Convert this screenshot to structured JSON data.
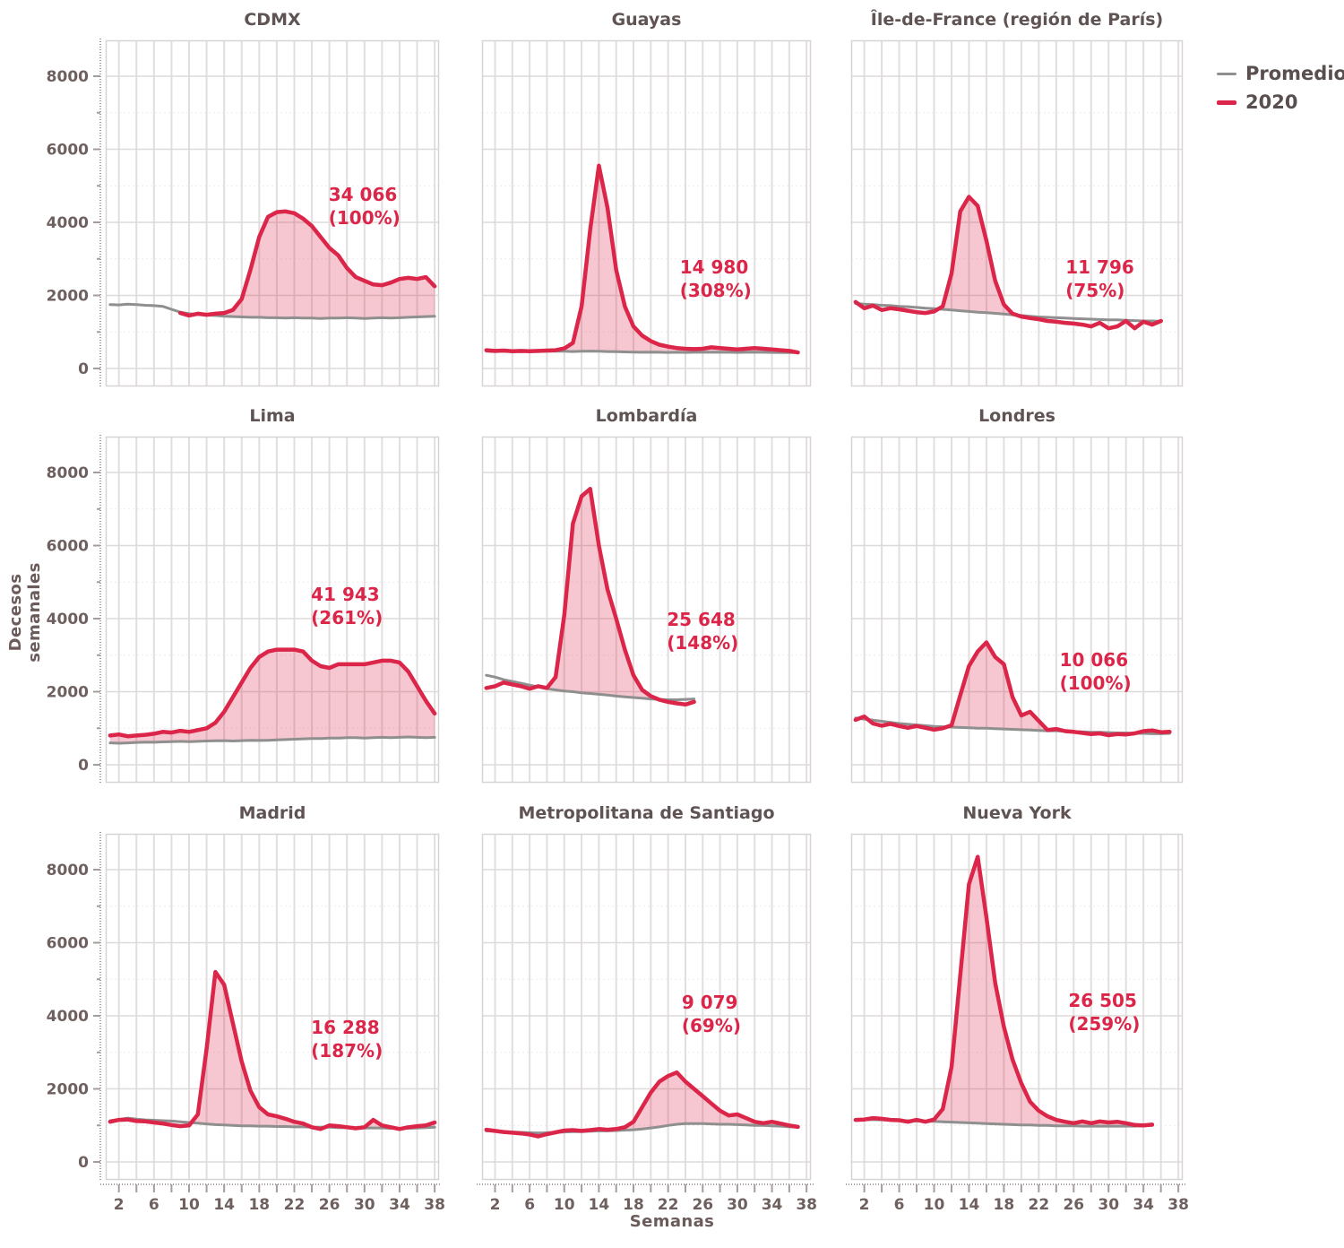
{
  "legend": {
    "items": [
      {
        "label": "Promedio",
        "color": "#8f8f8f"
      },
      {
        "label": "2020",
        "color": "#db2549"
      }
    ]
  },
  "labels": {
    "y_axis": "Decesos semanales",
    "x_axis": "Semanas"
  },
  "colors": {
    "line_2020": "#db2549",
    "line_promedio": "#8f8f8f",
    "fill_2020": "rgba(219,37,73,0.26)",
    "grid_major": "#dedada",
    "grid_minor": "#efeaea",
    "panel_border": "#d8d4d4",
    "axis": "#a59d9d",
    "tick_text": "#6f6060",
    "annotation": "#db2549"
  },
  "chart_data": {
    "type": "line",
    "title": "",
    "xlabel": "Semanas",
    "ylabel": "Decesos semanales",
    "x_ticks": [
      2,
      6,
      10,
      14,
      18,
      22,
      26,
      30,
      34,
      38
    ],
    "x_grid_step": 2,
    "y_ticks": [
      0,
      2000,
      4000,
      6000,
      8000
    ],
    "xlim": [
      1,
      38
    ],
    "ylim": [
      0,
      8900
    ],
    "grid": true,
    "legend_position": "top-right",
    "series_names": [
      "Promedio",
      "2020"
    ],
    "panels": [
      {
        "title": "CDMX",
        "annotation": {
          "value": "34 066",
          "percent": "(100%)",
          "pos": [
            30,
            4450
          ]
        },
        "promedio": [
          1750,
          1740,
          1760,
          1750,
          1730,
          1720,
          1700,
          1620,
          1540,
          1500,
          1480,
          1460,
          1450,
          1430,
          1420,
          1410,
          1400,
          1400,
          1390,
          1390,
          1380,
          1390,
          1380,
          1380,
          1370,
          1380,
          1380,
          1390,
          1380,
          1370,
          1380,
          1390,
          1380,
          1390,
          1400,
          1410,
          1420,
          1430
        ],
        "y2020": [
          null,
          null,
          null,
          null,
          null,
          null,
          null,
          null,
          1520,
          1450,
          1500,
          1470,
          1500,
          1520,
          1600,
          1900,
          2700,
          3600,
          4150,
          4280,
          4300,
          4250,
          4100,
          3900,
          3600,
          3300,
          3100,
          2750,
          2500,
          2400,
          2300,
          2280,
          2350,
          2450,
          2480,
          2450,
          2500,
          2250
        ]
      },
      {
        "title": "Guayas",
        "annotation": {
          "value": "14 980",
          "percent": "(308%)",
          "pos": [
            27.5,
            2450
          ]
        },
        "promedio": [
          470,
          460,
          470,
          465,
          460,
          470,
          465,
          470,
          475,
          470,
          465,
          470,
          475,
          470,
          465,
          460,
          455,
          450,
          445,
          450,
          445,
          440,
          445,
          440,
          445,
          450,
          445,
          450,
          445,
          440,
          445,
          450,
          445,
          440,
          435,
          440,
          435
        ],
        "y2020": [
          500,
          480,
          490,
          470,
          480,
          470,
          480,
          490,
          500,
          550,
          700,
          1700,
          3800,
          5550,
          4400,
          2700,
          1700,
          1150,
          900,
          750,
          650,
          600,
          560,
          540,
          530,
          540,
          580,
          560,
          540,
          520,
          540,
          560,
          540,
          520,
          500,
          480,
          440
        ]
      },
      {
        "title": "Île-de-France (región de París)",
        "annotation": {
          "value": "11 796",
          "percent": "(75%)",
          "pos": [
            29,
            2450
          ]
        },
        "promedio": [
          1780,
          1760,
          1750,
          1730,
          1720,
          1700,
          1690,
          1670,
          1650,
          1640,
          1620,
          1600,
          1580,
          1560,
          1540,
          1530,
          1510,
          1490,
          1470,
          1450,
          1430,
          1410,
          1400,
          1390,
          1380,
          1370,
          1360,
          1350,
          1340,
          1330,
          1330,
          1320,
          1310,
          1300,
          1300,
          1290
        ],
        "y2020": [
          1820,
          1650,
          1720,
          1600,
          1650,
          1620,
          1580,
          1540,
          1520,
          1560,
          1700,
          2600,
          4300,
          4700,
          4450,
          3500,
          2400,
          1750,
          1500,
          1420,
          1380,
          1350,
          1300,
          1280,
          1250,
          1230,
          1200,
          1150,
          1250,
          1100,
          1150,
          1300,
          1100,
          1280,
          1200,
          1300
        ]
      },
      {
        "title": "Lima",
        "annotation": {
          "value": "41 943",
          "percent": "(261%)",
          "pos": [
            28,
            4350
          ]
        },
        "promedio": [
          600,
          590,
          600,
          610,
          620,
          615,
          625,
          630,
          640,
          630,
          640,
          650,
          655,
          660,
          650,
          660,
          670,
          665,
          670,
          680,
          690,
          700,
          710,
          720,
          720,
          730,
          730,
          740,
          740,
          730,
          740,
          750,
          740,
          750,
          760,
          750,
          740,
          750
        ],
        "y2020": [
          800,
          830,
          780,
          800,
          820,
          850,
          900,
          880,
          930,
          900,
          950,
          1000,
          1150,
          1450,
          1850,
          2250,
          2650,
          2950,
          3100,
          3150,
          3150,
          3150,
          3100,
          2850,
          2700,
          2650,
          2750,
          2750,
          2750,
          2750,
          2800,
          2850,
          2850,
          2800,
          2550,
          2150,
          1750,
          1400
        ]
      },
      {
        "title": "Lombardía",
        "annotation": {
          "value": "25 648",
          "percent": "(148%)",
          "pos": [
            26,
            3650
          ]
        },
        "promedio": [
          2450,
          2400,
          2330,
          2280,
          2230,
          2180,
          2130,
          2080,
          2050,
          2020,
          2000,
          1970,
          1950,
          1930,
          1910,
          1880,
          1860,
          1840,
          1820,
          1800,
          1790,
          1780,
          1780,
          1790,
          1800
        ],
        "y2020": [
          2100,
          2150,
          2250,
          2200,
          2150,
          2080,
          2150,
          2100,
          2400,
          4100,
          6600,
          7350,
          7550,
          6000,
          4800,
          4000,
          3150,
          2450,
          2050,
          1880,
          1780,
          1720,
          1680,
          1650,
          1720
        ]
      },
      {
        "title": "Londres",
        "annotation": {
          "value": "10 066",
          "percent": "(100%)",
          "pos": [
            28.5,
            2550
          ]
        },
        "promedio": [
          1280,
          1250,
          1220,
          1190,
          1160,
          1130,
          1110,
          1090,
          1070,
          1050,
          1040,
          1030,
          1020,
          1010,
          1000,
          1000,
          990,
          980,
          970,
          960,
          950,
          940,
          930,
          930,
          920,
          910,
          900,
          890,
          890,
          880,
          870,
          870,
          860,
          860,
          850,
          850,
          860
        ],
        "y2020": [
          1230,
          1320,
          1130,
          1070,
          1120,
          1060,
          1010,
          1060,
          1010,
          960,
          1000,
          1080,
          1900,
          2700,
          3100,
          3350,
          2950,
          2750,
          1850,
          1350,
          1450,
          1200,
          950,
          980,
          920,
          900,
          870,
          840,
          860,
          810,
          840,
          830,
          860,
          920,
          940,
          890,
          900
        ]
      },
      {
        "title": "Madrid",
        "annotation": {
          "value": "16 288",
          "percent": "(187%)",
          "pos": [
            28,
            3350
          ]
        },
        "promedio": [
          1130,
          1160,
          1200,
          1170,
          1150,
          1140,
          1130,
          1120,
          1100,
          1080,
          1060,
          1040,
          1020,
          1010,
          1000,
          990,
          990,
          980,
          980,
          970,
          970,
          960,
          960,
          950,
          950,
          950,
          940,
          940,
          930,
          930,
          930,
          930,
          920,
          920,
          920,
          930,
          940,
          950
        ],
        "y2020": [
          1100,
          1150,
          1160,
          1120,
          1110,
          1080,
          1050,
          1010,
          980,
          1000,
          1300,
          3100,
          5200,
          4850,
          3800,
          2750,
          1950,
          1500,
          1300,
          1250,
          1180,
          1100,
          1050,
          950,
          900,
          1000,
          980,
          950,
          920,
          950,
          1150,
          1000,
          950,
          900,
          950,
          980,
          1000,
          1080
        ]
      },
      {
        "title": "Metropolitana de Santiago",
        "annotation": {
          "value": "9 079",
          "percent": "(69%)",
          "pos": [
            27,
            4050
          ]
        },
        "promedio": [
          850,
          840,
          830,
          820,
          810,
          800,
          790,
          800,
          810,
          820,
          830,
          830,
          840,
          850,
          850,
          860,
          870,
          880,
          900,
          930,
          960,
          1000,
          1030,
          1050,
          1050,
          1050,
          1040,
          1030,
          1030,
          1020,
          1010,
          1000,
          1000,
          990,
          980,
          960,
          950
        ],
        "y2020": [
          880,
          850,
          820,
          800,
          780,
          750,
          700,
          760,
          810,
          860,
          870,
          850,
          870,
          900,
          880,
          900,
          950,
          1100,
          1500,
          1900,
          2200,
          2350,
          2450,
          2200,
          2000,
          1800,
          1600,
          1400,
          1270,
          1300,
          1200,
          1100,
          1060,
          1100,
          1050,
          1000,
          960
        ]
      },
      {
        "title": "Nueva York",
        "annotation": {
          "value": "26 505",
          "percent": "(259%)",
          "pos": [
            29.5,
            4100
          ]
        },
        "promedio": [
          1160,
          1150,
          1160,
          1150,
          1140,
          1130,
          1130,
          1120,
          1110,
          1110,
          1100,
          1090,
          1080,
          1070,
          1060,
          1050,
          1040,
          1030,
          1020,
          1010,
          1010,
          1000,
          1000,
          990,
          990,
          990,
          980,
          980,
          980,
          980,
          980,
          980,
          980,
          990,
          1000
        ],
        "y2020": [
          1150,
          1160,
          1200,
          1180,
          1150,
          1140,
          1100,
          1150,
          1100,
          1160,
          1450,
          2600,
          5100,
          7600,
          8350,
          6700,
          4900,
          3700,
          2800,
          2150,
          1650,
          1400,
          1250,
          1150,
          1100,
          1060,
          1110,
          1060,
          1110,
          1080,
          1100,
          1060,
          1010,
          1000,
          1020
        ]
      }
    ]
  }
}
